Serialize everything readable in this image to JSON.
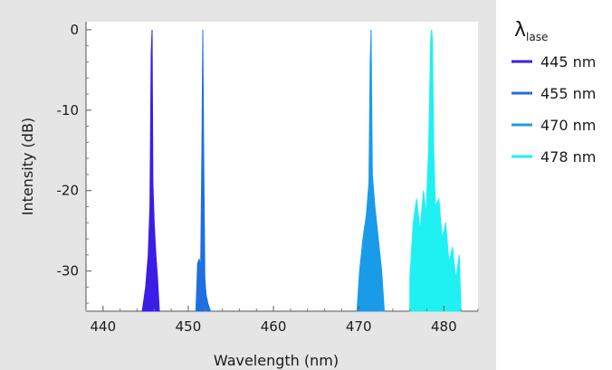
{
  "chart_data": {
    "type": "line",
    "title": "",
    "xlabel": "Wavelength (nm)",
    "ylabel": "Intensity (dB)",
    "xlim": [
      438,
      484
    ],
    "ylim": [
      -35,
      1
    ],
    "x_ticks": [
      "440",
      "450",
      "460",
      "470",
      "480"
    ],
    "y_ticks": [
      "0",
      "-10",
      "-20",
      "-30"
    ],
    "grid": false,
    "legend": {
      "title_main": "λ",
      "title_sub": "lase",
      "placement": "right"
    },
    "series": [
      {
        "name": "445 nm",
        "color": "#3b1ee6",
        "x": [
          444.6,
          445.0,
          445.3,
          445.5,
          445.65,
          445.75,
          445.85,
          446.0,
          446.2,
          446.4,
          446.6
        ],
        "y": [
          -35,
          -32,
          -28,
          -22,
          -3,
          0,
          -19,
          -24,
          -28,
          -31,
          -35
        ]
      },
      {
        "name": "455 nm",
        "color": "#1f6fe0",
        "x": [
          450.9,
          451.1,
          451.3,
          451.45,
          451.6,
          451.7,
          451.8,
          451.95,
          452.1,
          452.3,
          452.6
        ],
        "y": [
          -35,
          -29,
          -28.5,
          -30,
          -15,
          0,
          -14,
          -31,
          -33,
          -34,
          -35
        ]
      },
      {
        "name": "470 nm",
        "color": "#1a9be8",
        "x": [
          469.8,
          470.1,
          470.5,
          470.9,
          471.2,
          471.35,
          471.45,
          471.6,
          471.9,
          472.3,
          472.7,
          473.0
        ],
        "y": [
          -35,
          -30,
          -26,
          -23,
          -19,
          -4,
          0,
          -18,
          -22,
          -26,
          -30,
          -35
        ]
      },
      {
        "name": "478 nm",
        "color": "#1ff0f2",
        "x": [
          476.0,
          476.4,
          476.8,
          477.2,
          477.6,
          477.9,
          478.2,
          478.45,
          478.55,
          478.65,
          478.8,
          479.0,
          479.4,
          479.8,
          480.2,
          480.6,
          481.0,
          481.4,
          481.8,
          482.0
        ],
        "y": [
          -31,
          -24,
          -21,
          -25,
          -20,
          -23,
          -15,
          -1,
          0,
          -1,
          -15,
          -22,
          -21,
          -26,
          -24,
          -29,
          -27,
          -31,
          -28,
          -35
        ]
      }
    ]
  }
}
